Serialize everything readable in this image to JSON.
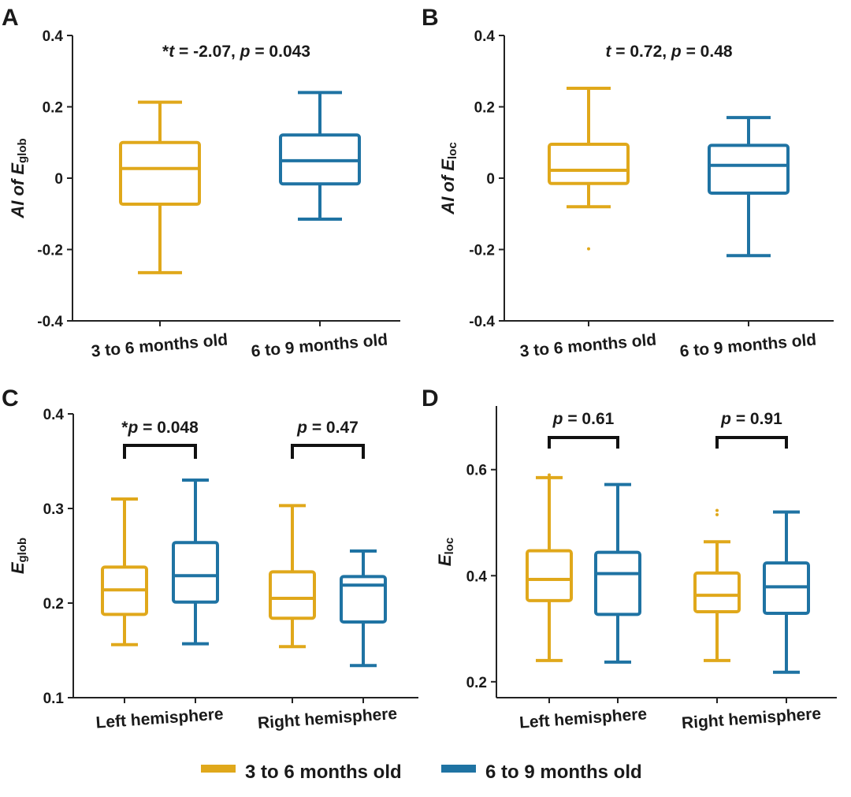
{
  "legend": {
    "items": [
      {
        "label": "3 to 6 months old",
        "color": "#E0A81B"
      },
      {
        "label": "6 to 9 months old",
        "color": "#1F73A3"
      }
    ]
  },
  "chart_data": [
    {
      "panel": "A",
      "type": "box",
      "ylabel": {
        "main": "AI of E",
        "sub": "glob"
      },
      "ylim": [
        -0.4,
        0.4
      ],
      "yticks": [
        -0.4,
        -0.2,
        0,
        0.2,
        0.4
      ],
      "ytick_labels": [
        "-0.4",
        "-0.2",
        "0",
        "0.2",
        "0.4"
      ],
      "categories": [
        "3 to 6 months old",
        "6 to 9 months old"
      ],
      "annotations": [
        {
          "group": "all",
          "parts": [
            {
              "t": "*",
              "i": false
            },
            {
              "t": "t",
              "i": true
            },
            {
              "t": " = -2.07, ",
              "i": false
            },
            {
              "t": "p",
              "i": true
            },
            {
              "t": " = 0.043",
              "i": false
            }
          ],
          "bracket": false
        }
      ],
      "boxes": [
        {
          "category": "3 to 6 months old",
          "series": "3 to 6 months old",
          "min": -0.265,
          "q1": -0.073,
          "median": 0.027,
          "q3": 0.1,
          "max": 0.213,
          "outliers": []
        },
        {
          "category": "6 to 9 months old",
          "series": "6 to 9 months old",
          "min": -0.115,
          "q1": -0.016,
          "median": 0.049,
          "q3": 0.121,
          "max": 0.24,
          "outliers": []
        }
      ]
    },
    {
      "panel": "B",
      "type": "box",
      "ylabel": {
        "main": "AI of E",
        "sub": "loc"
      },
      "ylim": [
        -0.4,
        0.4
      ],
      "yticks": [
        -0.4,
        -0.2,
        0,
        0.2,
        0.4
      ],
      "ytick_labels": [
        "-0.4",
        "-0.2",
        "0",
        "0.2",
        "0.4"
      ],
      "categories": [
        "3 to 6 months old",
        "6 to 9 months old"
      ],
      "annotations": [
        {
          "group": "all",
          "parts": [
            {
              "t": "t",
              "i": true
            },
            {
              "t": " = 0.72, ",
              "i": false
            },
            {
              "t": "p",
              "i": true
            },
            {
              "t": " = 0.48",
              "i": false
            }
          ],
          "bracket": false
        }
      ],
      "boxes": [
        {
          "category": "3 to 6 months old",
          "series": "3 to 6 months old",
          "min": -0.08,
          "q1": -0.015,
          "median": 0.022,
          "q3": 0.095,
          "max": 0.252,
          "outliers": [
            -0.198
          ]
        },
        {
          "category": "6 to 9 months old",
          "series": "6 to 9 months old",
          "min": -0.217,
          "q1": -0.042,
          "median": 0.036,
          "q3": 0.092,
          "max": 0.17,
          "outliers": []
        }
      ]
    },
    {
      "panel": "C",
      "type": "box",
      "ylabel": {
        "main": "E",
        "sub": "glob"
      },
      "ylim": [
        0.1,
        0.4
      ],
      "yticks": [
        0.1,
        0.2,
        0.3,
        0.4
      ],
      "ytick_labels": [
        "0.1",
        "0.2",
        "0.3",
        "0.4"
      ],
      "categories": [
        "Left hemisphere",
        "Right hemisphere"
      ],
      "annotations": [
        {
          "group": "Left hemisphere",
          "parts": [
            {
              "t": "*",
              "i": false
            },
            {
              "t": "p",
              "i": true
            },
            {
              "t": " = 0.048",
              "i": false
            }
          ],
          "bracket": true
        },
        {
          "group": "Right hemisphere",
          "parts": [
            {
              "t": "p",
              "i": true
            },
            {
              "t": " = 0.47",
              "i": false
            }
          ],
          "bracket": true
        }
      ],
      "boxes": [
        {
          "category": "Left hemisphere",
          "series": "3 to 6 months old",
          "min": 0.156,
          "q1": 0.188,
          "median": 0.214,
          "q3": 0.238,
          "max": 0.31,
          "outliers": []
        },
        {
          "category": "Left hemisphere",
          "series": "6 to 9 months old",
          "min": 0.157,
          "q1": 0.201,
          "median": 0.229,
          "q3": 0.264,
          "max": 0.33,
          "outliers": []
        },
        {
          "category": "Right hemisphere",
          "series": "3 to 6 months old",
          "min": 0.154,
          "q1": 0.184,
          "median": 0.205,
          "q3": 0.233,
          "max": 0.303,
          "outliers": []
        },
        {
          "category": "Right hemisphere",
          "series": "6 to 9 months old",
          "min": 0.134,
          "q1": 0.18,
          "median": 0.219,
          "q3": 0.228,
          "max": 0.255,
          "outliers": []
        }
      ]
    },
    {
      "panel": "D",
      "type": "box",
      "ylabel": {
        "main": "E",
        "sub": "loc"
      },
      "ylim": [
        0.17,
        0.72
      ],
      "yticks": [
        0.2,
        0.4,
        0.6
      ],
      "ytick_labels": [
        "0.2",
        "0.4",
        "0.6"
      ],
      "categories": [
        "Left hemisphere",
        "Right hemisphere"
      ],
      "annotations": [
        {
          "group": "Left hemisphere",
          "parts": [
            {
              "t": "p",
              "i": true
            },
            {
              "t": " = 0.61",
              "i": false
            }
          ],
          "bracket": true
        },
        {
          "group": "Right hemisphere",
          "parts": [
            {
              "t": "p",
              "i": true
            },
            {
              "t": " = 0.91",
              "i": false
            }
          ],
          "bracket": true
        }
      ],
      "boxes": [
        {
          "category": "Left hemisphere",
          "series": "3 to 6 months old",
          "min": 0.24,
          "q1": 0.353,
          "median": 0.393,
          "q3": 0.447,
          "max": 0.585,
          "outliers": [
            0.59
          ]
        },
        {
          "category": "Left hemisphere",
          "series": "6 to 9 months old",
          "min": 0.237,
          "q1": 0.327,
          "median": 0.404,
          "q3": 0.444,
          "max": 0.572,
          "outliers": []
        },
        {
          "category": "Right hemisphere",
          "series": "3 to 6 months old",
          "min": 0.24,
          "q1": 0.332,
          "median": 0.363,
          "q3": 0.405,
          "max": 0.464,
          "outliers": [
            0.515,
            0.523
          ]
        },
        {
          "category": "Right hemisphere",
          "series": "6 to 9 months old",
          "min": 0.218,
          "q1": 0.329,
          "median": 0.379,
          "q3": 0.424,
          "max": 0.52,
          "outliers": []
        }
      ]
    }
  ]
}
